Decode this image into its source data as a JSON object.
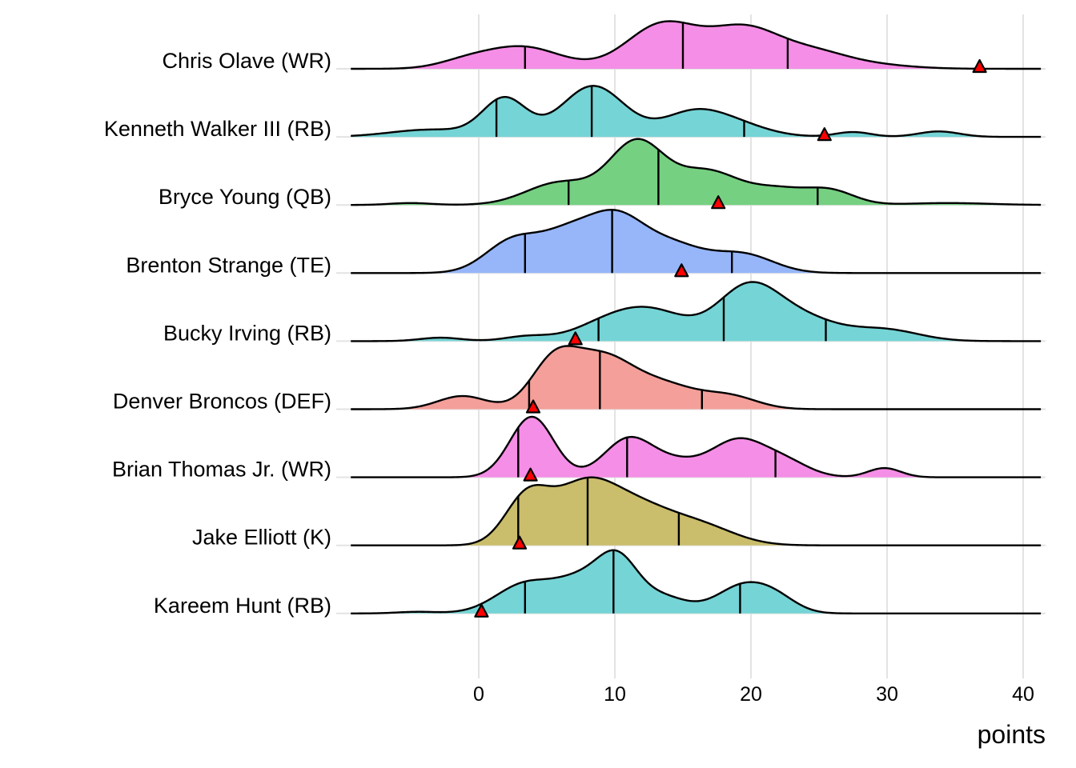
{
  "chart_data": {
    "type": "ridgeline",
    "title": "",
    "xlabel": "points",
    "ylabel": "",
    "xlim": [
      -9.4,
      41.3
    ],
    "x_ticks": [
      0,
      10,
      20,
      30,
      40
    ],
    "x_tick_labels": [
      "0",
      "10",
      "20",
      "30",
      "40"
    ],
    "grid": "vertical major gridlines",
    "marker_description": "red triangle = actual points scored",
    "quantile_lines": "vertical lines at 25th, 50th, 75th percentiles",
    "series": [
      {
        "name": "Chris Olave (WR)",
        "color": "#F58CE6",
        "quantiles": [
          3.4,
          15.0,
          22.7
        ],
        "actual": 36.8,
        "density_components": [
          [
            3.2,
            2.8,
            0.42
          ],
          [
            -1.0,
            2.0,
            0.12
          ],
          [
            13.5,
            2.6,
            0.85
          ],
          [
            19.5,
            2.6,
            0.75
          ],
          [
            24.5,
            2.5,
            0.28
          ],
          [
            28.5,
            3.0,
            0.08
          ]
        ]
      },
      {
        "name": "Kenneth Walker III (RB)",
        "color": "#72D3D4",
        "quantiles": [
          1.3,
          8.3,
          19.5
        ],
        "actual": 25.4,
        "density_components": [
          [
            -3.5,
            3.0,
            0.12
          ],
          [
            1.9,
            1.6,
            0.62
          ],
          [
            8.4,
            2.3,
            0.84
          ],
          [
            15.5,
            2.2,
            0.33
          ],
          [
            18.5,
            2.5,
            0.22
          ],
          [
            27.5,
            1.3,
            0.08
          ],
          [
            33.8,
            1.5,
            0.09
          ]
        ]
      },
      {
        "name": "Bryce Young (QB)",
        "color": "#72CF7E",
        "quantiles": [
          6.6,
          13.2,
          24.9
        ],
        "actual": 17.6,
        "density_components": [
          [
            -5.0,
            1.5,
            0.03
          ],
          [
            6.0,
            2.5,
            0.35
          ],
          [
            11.6,
            2.0,
            0.95
          ],
          [
            16.8,
            2.4,
            0.52
          ],
          [
            22.0,
            2.0,
            0.22
          ],
          [
            25.8,
            1.8,
            0.22
          ],
          [
            34.5,
            3.0,
            0.03
          ]
        ]
      },
      {
        "name": "Brenton Strange (TE)",
        "color": "#95B5F9",
        "quantiles": [
          3.4,
          9.8,
          18.6
        ],
        "actual": 14.9,
        "density_components": [
          [
            2.5,
            2.0,
            0.5
          ],
          [
            6.5,
            2.0,
            0.55
          ],
          [
            10.0,
            2.0,
            0.75
          ],
          [
            14.0,
            2.5,
            0.45
          ],
          [
            19.5,
            2.2,
            0.28
          ]
        ]
      },
      {
        "name": "Bucky Irving (RB)",
        "color": "#72D3D4",
        "quantiles": [
          8.8,
          18.0,
          25.5
        ],
        "actual": 7.1,
        "density_components": [
          [
            -2.8,
            1.5,
            0.06
          ],
          [
            3.5,
            1.6,
            0.08
          ],
          [
            9.5,
            2.5,
            0.3
          ],
          [
            13.0,
            2.5,
            0.45
          ],
          [
            19.8,
            2.3,
            0.93
          ],
          [
            24.0,
            2.5,
            0.35
          ],
          [
            29.8,
            2.5,
            0.2
          ]
        ]
      },
      {
        "name": "Denver Broncos (DEF)",
        "color": "#F49D98",
        "quantiles": [
          3.7,
          8.9,
          16.4
        ],
        "actual": 4.0,
        "density_components": [
          [
            -1.2,
            1.8,
            0.22
          ],
          [
            5.5,
            1.7,
            0.75
          ],
          [
            9.0,
            2.2,
            0.8
          ],
          [
            13.5,
            2.5,
            0.4
          ],
          [
            18.5,
            2.0,
            0.2
          ]
        ]
      },
      {
        "name": "Brian Thomas Jr. (WR)",
        "color": "#F58CE6",
        "quantiles": [
          2.9,
          10.9,
          21.8
        ],
        "actual": 3.8,
        "density_components": [
          [
            3.9,
            1.6,
            0.92
          ],
          [
            11.0,
            1.8,
            0.58
          ],
          [
            14.5,
            1.8,
            0.2
          ],
          [
            19.0,
            2.0,
            0.55
          ],
          [
            22.5,
            1.8,
            0.22
          ],
          [
            29.8,
            1.2,
            0.14
          ]
        ]
      },
      {
        "name": "Jake Elliott (K)",
        "color": "#C9BC68",
        "quantiles": [
          2.9,
          8.0,
          14.7
        ],
        "actual": 3.0,
        "density_components": [
          [
            3.5,
            1.6,
            0.6
          ],
          [
            7.5,
            2.3,
            0.68
          ],
          [
            11.5,
            2.8,
            0.5
          ],
          [
            16.5,
            2.5,
            0.22
          ]
        ]
      },
      {
        "name": "Kareem Hunt (RB)",
        "color": "#72D3D4",
        "quantiles": [
          3.4,
          9.9,
          19.2
        ],
        "actual": 0.2,
        "density_components": [
          [
            -4.5,
            1.5,
            0.02
          ],
          [
            3.5,
            2.2,
            0.37
          ],
          [
            7.5,
            1.8,
            0.35
          ],
          [
            10.2,
            1.5,
            0.62
          ],
          [
            13.5,
            1.8,
            0.2
          ],
          [
            19.5,
            2.0,
            0.35
          ],
          [
            22.0,
            1.5,
            0.12
          ]
        ]
      }
    ],
    "series_peak_scale": [
      0.7,
      0.75,
      0.97,
      0.93,
      0.87,
      0.93,
      0.89,
      1.0,
      0.93
    ]
  }
}
